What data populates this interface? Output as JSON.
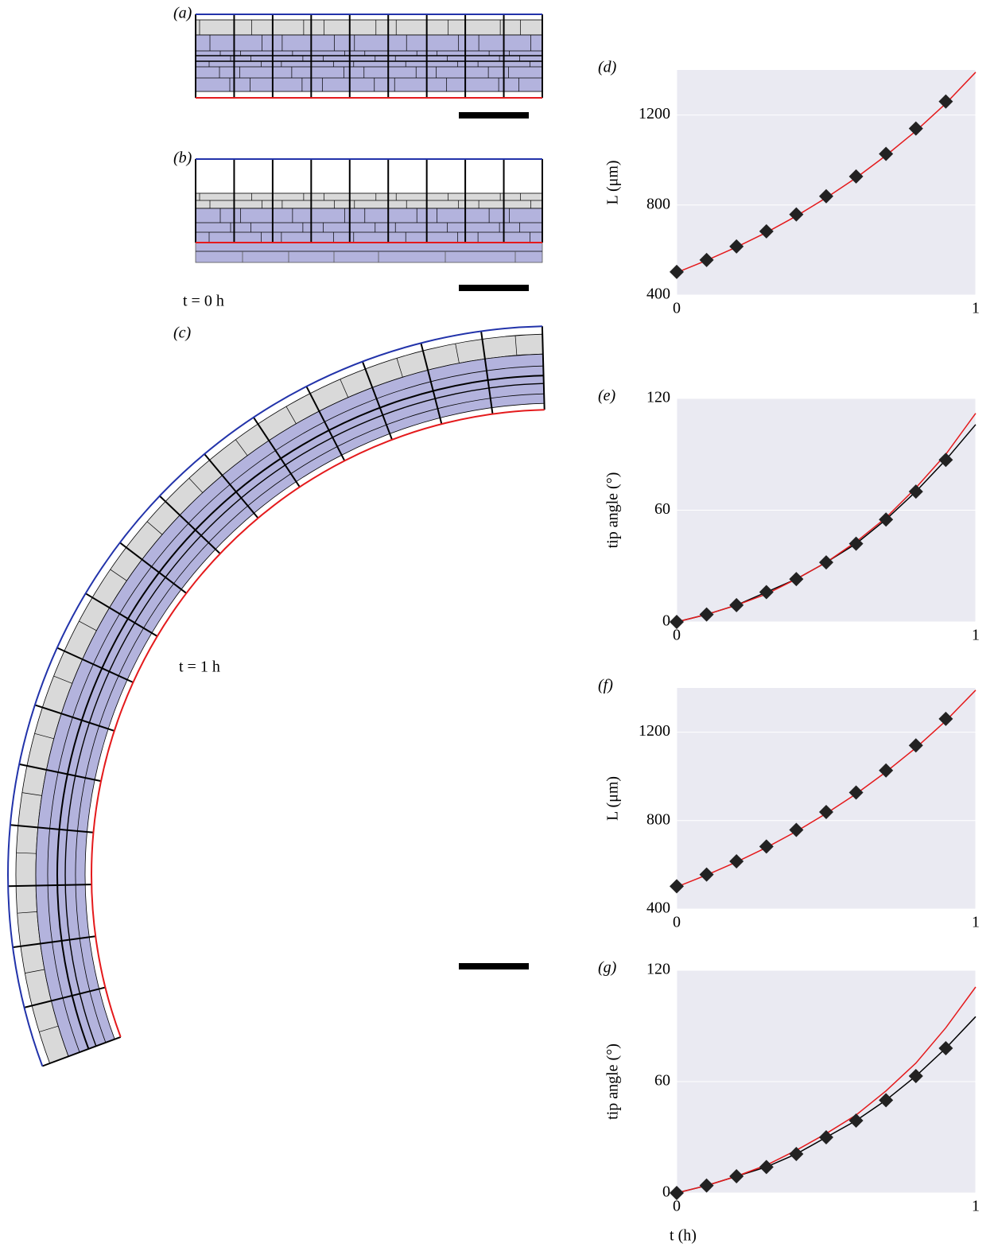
{
  "figure": {
    "panel_labels": [
      "(a)",
      "(b)",
      "(c)"
    ],
    "time_labels": [
      "t = 0 h",
      "t = 1 h"
    ]
  },
  "chart_data": [
    {
      "type": "line",
      "label": "(d)",
      "ylabel": "L (μm)",
      "xlim": [
        0,
        1
      ],
      "xticks": [
        0,
        1
      ],
      "ylim": [
        400,
        1400
      ],
      "yticks": [
        400,
        800,
        1200
      ],
      "grid": true,
      "series": [
        {
          "style": "line",
          "color": "#e41a1c",
          "x": [
            0,
            0.1,
            0.2,
            0.3,
            0.4,
            0.5,
            0.6,
            0.7,
            0.8,
            0.9,
            1
          ],
          "values": [
            500,
            554,
            613,
            678,
            751,
            832,
            921,
            1020,
            1129,
            1251,
            1390
          ]
        },
        {
          "style": "markers",
          "color": "#222222",
          "x": [
            0,
            0.1,
            0.2,
            0.3,
            0.4,
            0.5,
            0.6,
            0.7,
            0.8,
            0.9
          ],
          "values": [
            503,
            556,
            616,
            683,
            758,
            839,
            927,
            1027,
            1140,
            1260
          ]
        }
      ]
    },
    {
      "type": "line",
      "label": "(e)",
      "ylabel": "tip angle (°)",
      "xlim": [
        0,
        1
      ],
      "xticks": [
        0,
        1
      ],
      "ylim": [
        0,
        120
      ],
      "yticks": [
        0,
        60,
        120
      ],
      "grid": true,
      "series": [
        {
          "style": "line",
          "color": "#000000",
          "x": [
            0,
            0.1,
            0.2,
            0.3,
            0.4,
            0.5,
            0.6,
            0.7,
            0.8,
            0.9,
            1
          ],
          "values": [
            0,
            4,
            9,
            16,
            23,
            32,
            42,
            55,
            70,
            87,
            106
          ]
        },
        {
          "style": "line",
          "color": "#e41a1c",
          "x": [
            0,
            0.1,
            0.2,
            0.3,
            0.4,
            0.5,
            0.6,
            0.7,
            0.8,
            0.9,
            1
          ],
          "values": [
            0,
            4,
            9,
            15,
            23,
            32,
            43,
            56,
            72,
            90,
            112
          ]
        },
        {
          "style": "markers",
          "color": "#222222",
          "x": [
            0,
            0.1,
            0.2,
            0.3,
            0.4,
            0.5,
            0.6,
            0.7,
            0.8,
            0.9
          ],
          "values": [
            0,
            4,
            9,
            16,
            23,
            32,
            42,
            55,
            70,
            87
          ]
        }
      ]
    },
    {
      "type": "line",
      "label": "(f)",
      "ylabel": "L (μm)",
      "xlim": [
        0,
        1
      ],
      "xticks": [
        0,
        1
      ],
      "ylim": [
        400,
        1400
      ],
      "yticks": [
        400,
        800,
        1200
      ],
      "grid": true,
      "series": [
        {
          "style": "line",
          "color": "#e41a1c",
          "x": [
            0,
            0.1,
            0.2,
            0.3,
            0.4,
            0.5,
            0.6,
            0.7,
            0.8,
            0.9,
            1
          ],
          "values": [
            500,
            554,
            613,
            678,
            751,
            832,
            921,
            1020,
            1129,
            1251,
            1390
          ]
        },
        {
          "style": "markers",
          "color": "#222222",
          "x": [
            0,
            0.1,
            0.2,
            0.3,
            0.4,
            0.5,
            0.6,
            0.7,
            0.8,
            0.9
          ],
          "values": [
            503,
            556,
            616,
            683,
            758,
            839,
            927,
            1027,
            1140,
            1260
          ]
        }
      ]
    },
    {
      "type": "line",
      "label": "(g)",
      "ylabel": "tip angle (°)",
      "xlabel": "t (h)",
      "xlim": [
        0,
        1
      ],
      "xticks": [
        0,
        1
      ],
      "ylim": [
        0,
        120
      ],
      "yticks": [
        0,
        60,
        120
      ],
      "grid": true,
      "series": [
        {
          "style": "line",
          "color": "#000000",
          "x": [
            0,
            0.1,
            0.2,
            0.3,
            0.4,
            0.5,
            0.6,
            0.7,
            0.8,
            0.9,
            1
          ],
          "values": [
            0,
            4,
            9,
            14,
            21,
            30,
            39,
            50,
            63,
            78,
            95
          ]
        },
        {
          "style": "line",
          "color": "#e41a1c",
          "x": [
            0,
            0.1,
            0.2,
            0.3,
            0.4,
            0.5,
            0.6,
            0.7,
            0.8,
            0.9,
            1
          ],
          "values": [
            0,
            4,
            9,
            15,
            23,
            32,
            42,
            55,
            70,
            89,
            111
          ]
        },
        {
          "style": "markers",
          "color": "#222222",
          "x": [
            0,
            0.1,
            0.2,
            0.3,
            0.4,
            0.5,
            0.6,
            0.7,
            0.8,
            0.9
          ],
          "values": [
            0,
            4,
            9,
            14,
            21,
            30,
            39,
            50,
            63,
            78
          ]
        }
      ]
    }
  ]
}
